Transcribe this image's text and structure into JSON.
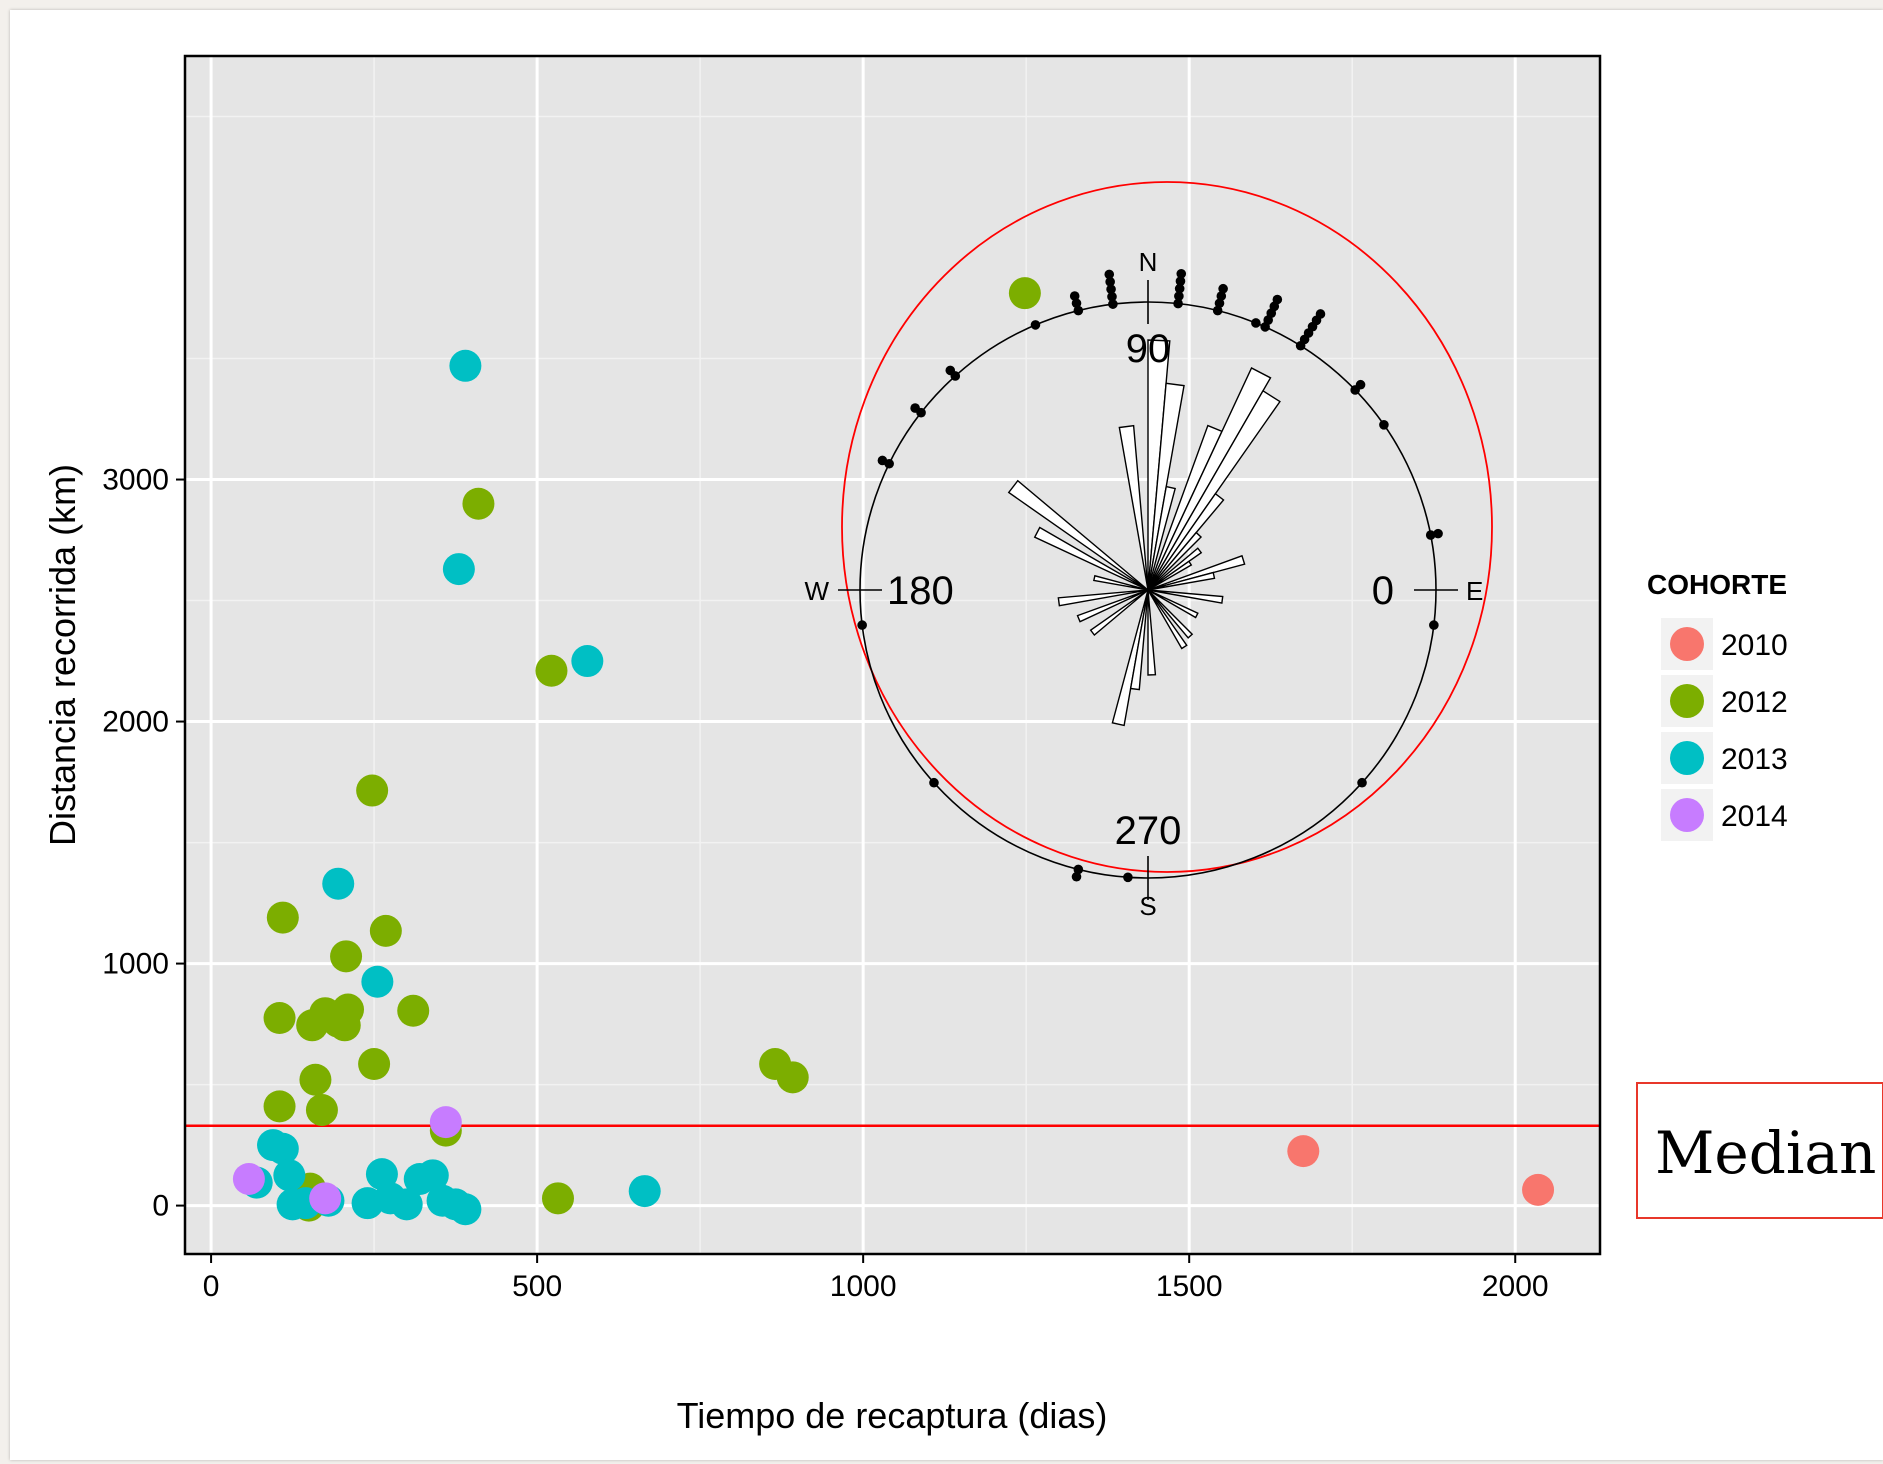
{
  "chart_data": {
    "type": "scatter",
    "title": "",
    "xlabel": "Tiempo de recaptura (dias)",
    "ylabel": "Distancia recorrida (km)",
    "xlim": [
      -40,
      2130
    ],
    "ylim": [
      -200,
      4750
    ],
    "x_ticks": [
      0,
      500,
      1000,
      1500,
      2000
    ],
    "y_ticks": [
      0,
      1000,
      2000,
      3000
    ],
    "grid": true,
    "legend_title": "COHORTE",
    "legend_position": "right",
    "series": [
      {
        "name": "2010",
        "color": "#F8766D",
        "points": [
          [
            1675,
            225
          ],
          [
            2035,
            65
          ]
        ]
      },
      {
        "name": "2012",
        "color": "#7CAE00",
        "points": [
          [
            1248,
            3770
          ],
          [
            410,
            2900
          ],
          [
            522,
            2210
          ],
          [
            247,
            1715
          ],
          [
            110,
            1190
          ],
          [
            268,
            1135
          ],
          [
            207,
            1030
          ],
          [
            105,
            775
          ],
          [
            155,
            745
          ],
          [
            175,
            795
          ],
          [
            195,
            760
          ],
          [
            210,
            810
          ],
          [
            205,
            745
          ],
          [
            310,
            805
          ],
          [
            250,
            585
          ],
          [
            160,
            520
          ],
          [
            105,
            410
          ],
          [
            170,
            395
          ],
          [
            360,
            310
          ],
          [
            865,
            585
          ],
          [
            892,
            530
          ],
          [
            532,
            30
          ],
          [
            152,
            70
          ],
          [
            150,
            0
          ]
        ]
      },
      {
        "name": "2013",
        "color": "#00BFC4",
        "points": [
          [
            390,
            3470
          ],
          [
            380,
            2630
          ],
          [
            577,
            2250
          ],
          [
            195,
            1330
          ],
          [
            255,
            925
          ],
          [
            95,
            250
          ],
          [
            110,
            235
          ],
          [
            120,
            125
          ],
          [
            70,
            95
          ],
          [
            125,
            5
          ],
          [
            145,
            10
          ],
          [
            180,
            20
          ],
          [
            240,
            10
          ],
          [
            262,
            130
          ],
          [
            275,
            30
          ],
          [
            300,
            5
          ],
          [
            320,
            110
          ],
          [
            340,
            125
          ],
          [
            355,
            20
          ],
          [
            375,
            5
          ],
          [
            390,
            -15
          ],
          [
            665,
            60
          ]
        ]
      },
      {
        "name": "2014",
        "color": "#C77CFF",
        "points": [
          [
            360,
            345
          ],
          [
            58,
            110
          ],
          [
            175,
            30
          ]
        ]
      }
    ],
    "median": {
      "label": "Median",
      "value": 330,
      "color": "#FF0000"
    },
    "inset_rose": {
      "type": "rose",
      "angle_labels": {
        "top": "90",
        "left": "180",
        "right": "0",
        "bottom": "270"
      },
      "cardinals": {
        "north": "N",
        "south": "S",
        "west": "W",
        "east": "E"
      },
      "circle_color": "#FF0000",
      "sector_width_deg": 5,
      "bars": [
        {
          "angle": 87.5,
          "length": 1.0
        },
        {
          "angle": 82.5,
          "length": 0.83
        },
        {
          "angle": 77.5,
          "length": 0.42
        },
        {
          "angle": 67.5,
          "length": 0.7
        },
        {
          "angle": 62.5,
          "length": 0.98
        },
        {
          "angle": 57.5,
          "length": 0.92
        },
        {
          "angle": 52.5,
          "length": 0.47
        },
        {
          "angle": 47.5,
          "length": 0.3
        },
        {
          "angle": 37.5,
          "length": 0.26
        },
        {
          "angle": 32.5,
          "length": 0.2
        },
        {
          "angle": 17.5,
          "length": 0.4
        },
        {
          "angle": 12.5,
          "length": 0.27
        },
        {
          "angle": 97.5,
          "length": 0.66
        },
        {
          "angle": 142.5,
          "length": 0.68
        },
        {
          "angle": 152.5,
          "length": 0.5
        },
        {
          "angle": 167.5,
          "length": 0.22
        },
        {
          "angle": 187.5,
          "length": 0.36
        },
        {
          "angle": 202.5,
          "length": 0.3
        },
        {
          "angle": 217.5,
          "length": 0.28
        },
        {
          "angle": 257.5,
          "length": 0.55
        },
        {
          "angle": 262.5,
          "length": 0.4
        },
        {
          "angle": 272.5,
          "length": 0.34
        },
        {
          "angle": 302.5,
          "length": 0.27
        },
        {
          "angle": 312.5,
          "length": 0.25
        },
        {
          "angle": 332.5,
          "length": 0.22
        },
        {
          "angle": 352.5,
          "length": 0.3
        }
      ],
      "data_points": [
        {
          "angle": 97,
          "count": 5
        },
        {
          "angle": 84,
          "count": 5
        },
        {
          "angle": 104,
          "count": 3
        },
        {
          "angle": 76,
          "count": 4
        },
        {
          "angle": 66,
          "count": 5
        },
        {
          "angle": 58,
          "count": 6
        },
        {
          "angle": 68,
          "count": 1
        },
        {
          "angle": 113,
          "count": 1
        },
        {
          "angle": 132,
          "count": 2
        },
        {
          "angle": 142,
          "count": 2
        },
        {
          "angle": 154,
          "count": 2
        },
        {
          "angle": 44,
          "count": 2
        },
        {
          "angle": 35,
          "count": 1
        },
        {
          "angle": 11,
          "count": 2
        },
        {
          "angle": 187,
          "count": 1
        },
        {
          "angle": 353,
          "count": 1
        },
        {
          "angle": 222,
          "count": 1
        },
        {
          "angle": 318,
          "count": 1
        },
        {
          "angle": 256,
          "count": 2
        },
        {
          "angle": 266,
          "count": 1
        }
      ]
    }
  }
}
